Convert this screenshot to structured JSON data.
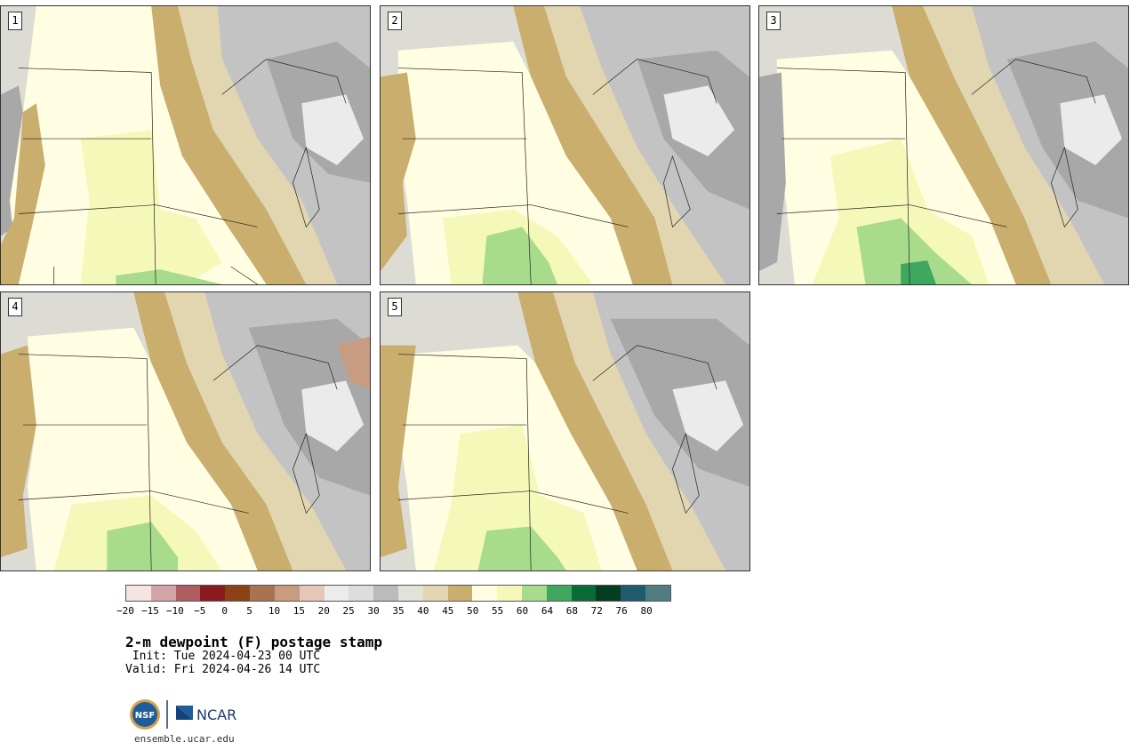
{
  "panels": [
    {
      "label": "1"
    },
    {
      "label": "2"
    },
    {
      "label": "3"
    },
    {
      "label": "4"
    },
    {
      "label": "5"
    }
  ],
  "colorbar": {
    "colors": [
      "#f4e4e2",
      "#d4a5a6",
      "#ae5e60",
      "#8b1a1f",
      "#8a4216",
      "#a97350",
      "#c89c80",
      "#e4c7b8",
      "#ececec",
      "#dddddd",
      "#bbbbbb",
      "#e2e2d8",
      "#e2d6b0",
      "#c9ae6e",
      "#fffee2",
      "#f4f9b9",
      "#a8dc8c",
      "#3fa85e",
      "#0b6b37",
      "#043d22",
      "#1f5b6d",
      "#4f7d80"
    ],
    "ticks": [
      "−20",
      "−15",
      "−10",
      "−5",
      "0",
      "5",
      "10",
      "15",
      "20",
      "25",
      "30",
      "35",
      "40",
      "45",
      "50",
      "55",
      "60",
      "64",
      "68",
      "72",
      "76",
      "80"
    ]
  },
  "title": "2-m dewpoint (F) postage stamp",
  "init": " Init: Tue 2024-04-23 00 UTC",
  "valid": "Valid: Fri 2024-04-26 14 UTC",
  "logo": {
    "nsf_text": "NSF",
    "ncar_text": "NCAR"
  },
  "url": "ensemble.ucar.edu"
}
